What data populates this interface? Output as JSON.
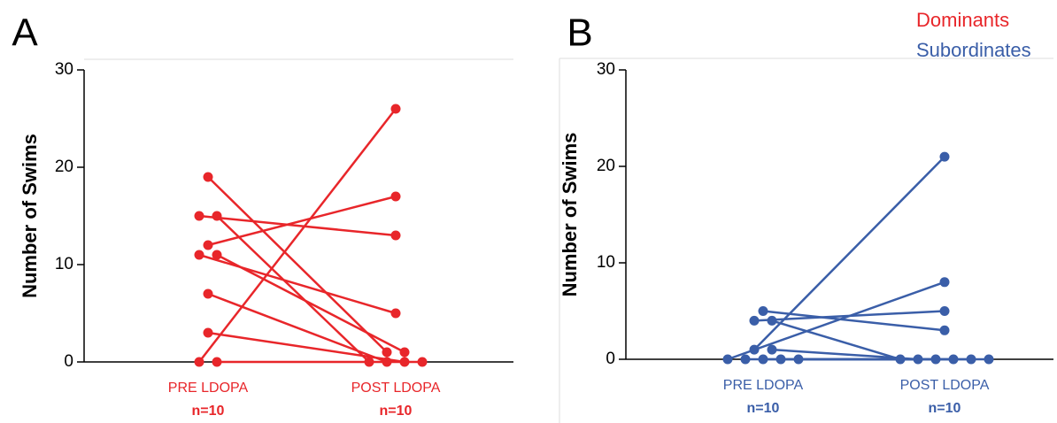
{
  "chart_data": [
    {
      "type": "paired",
      "label": "A",
      "ylabel": "Number of Swims",
      "categories": [
        "PRE LDOPA",
        "POST LDOPA"
      ],
      "category_notes": [
        "n=10",
        "n=10"
      ],
      "ylim": [
        0,
        30
      ],
      "yticks": [
        0,
        10,
        20,
        30
      ],
      "series": [
        {
          "name": "Dominants",
          "color": "#e8262a",
          "values": [
            [
              0,
              26
            ],
            [
              12,
              17
            ],
            [
              15,
              13
            ],
            [
              19,
              1
            ],
            [
              15,
              0
            ],
            [
              11,
              5
            ],
            [
              11,
              1
            ],
            [
              7,
              0
            ],
            [
              3,
              0
            ],
            [
              0,
              0
            ]
          ]
        }
      ]
    },
    {
      "type": "paired",
      "label": "B",
      "ylabel": "Number of Swims",
      "categories": [
        "PRE LDOPA",
        "POST LDOPA"
      ],
      "category_notes": [
        "n=10",
        "n=10"
      ],
      "ylim": [
        0,
        30
      ],
      "yticks": [
        0,
        10,
        20,
        30
      ],
      "series": [
        {
          "name": "Subordinates",
          "color": "#3a5ea8",
          "values": [
            [
              1,
              21
            ],
            [
              0,
              8
            ],
            [
              4,
              5
            ],
            [
              5,
              3
            ],
            [
              4,
              0
            ],
            [
              1,
              0
            ],
            [
              0,
              0
            ],
            [
              0,
              0
            ],
            [
              0,
              0
            ],
            [
              0,
              0
            ]
          ]
        }
      ]
    }
  ]
}
